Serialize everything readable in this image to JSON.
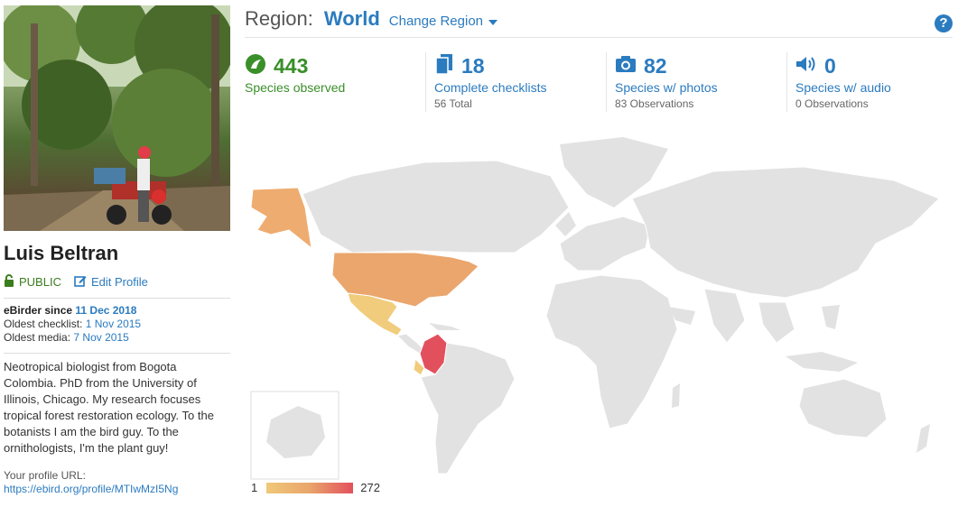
{
  "profile": {
    "name": "Luis Beltran",
    "visibility": "PUBLIC",
    "edit_label": "Edit Profile",
    "since_label": "eBirder since",
    "since_date": "11 Dec 2018",
    "oldest_checklist_label": "Oldest checklist:",
    "oldest_checklist_date": "1 Nov 2015",
    "oldest_media_label": "Oldest media:",
    "oldest_media_date": "7 Nov 2015",
    "bio": "Neotropical biologist from Bogota Colombia. PhD from the University of Illinois, Chicago. My research focuses tropical forest restoration ecology. To the botanists I am the bird guy. To the ornithologists, I'm the plant guy!",
    "url_label": "Your profile URL:",
    "url": "https://ebird.org/profile/MTIwMzI5Ng"
  },
  "region": {
    "label": "Region:",
    "value": "World",
    "change_label": "Change Region"
  },
  "stats": [
    {
      "icon": "species-icon",
      "number": "443",
      "label": "Species observed",
      "sub": ""
    },
    {
      "icon": "checklist-icon",
      "number": "18",
      "label": "Complete checklists",
      "sub": "56 Total"
    },
    {
      "icon": "camera-icon",
      "number": "82",
      "label": "Species w/ photos",
      "sub": "83 Observations"
    },
    {
      "icon": "speaker-icon",
      "number": "0",
      "label": "Species w/ audio",
      "sub": "0 Observations"
    }
  ],
  "legend": {
    "min": "1",
    "max": "272"
  },
  "colors": {
    "accent": "#2b7bbf",
    "green": "#3a8f2a",
    "land": "#e2e2e2",
    "scale_low": "#f0c878",
    "scale_mid": "#e9a56b",
    "scale_high": "#e3505d"
  }
}
